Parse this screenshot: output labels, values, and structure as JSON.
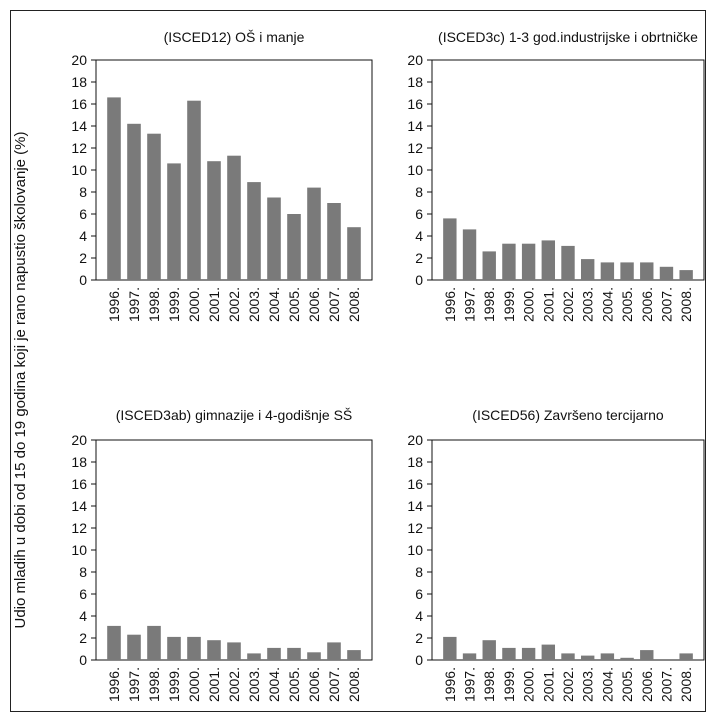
{
  "figure": {
    "ylabel": "Udio mladih u dobi od 15 do 19 godina koji je rano napustio školovanje (%)"
  },
  "style": {
    "bar_color": "#7a7a7a",
    "axis_color": "#111111"
  },
  "chart_data": [
    {
      "type": "bar",
      "title": "(ISCED12) OŠ i manje",
      "categories": [
        "1996.",
        "1997.",
        "1998.",
        "1999.",
        "2000.",
        "2001.",
        "2002.",
        "2003.",
        "2004.",
        "2005.",
        "2006.",
        "2007.",
        "2008."
      ],
      "values": [
        16.6,
        14.2,
        13.3,
        10.6,
        16.3,
        10.8,
        11.3,
        8.9,
        7.5,
        6.0,
        8.4,
        7.0,
        4.8
      ],
      "ylim": [
        0,
        20
      ],
      "yticks": [
        0,
        2,
        4,
        6,
        8,
        10,
        12,
        14,
        16,
        18,
        20
      ]
    },
    {
      "type": "bar",
      "title": "(ISCED3c) 1-3 god.industrijske i obrtničke",
      "categories": [
        "1996.",
        "1997.",
        "1998.",
        "1999.",
        "2000.",
        "2001.",
        "2002.",
        "2003.",
        "2004.",
        "2005.",
        "2006.",
        "2007.",
        "2008."
      ],
      "values": [
        5.6,
        4.6,
        2.6,
        3.3,
        3.3,
        3.6,
        3.1,
        1.9,
        1.6,
        1.6,
        1.6,
        1.2,
        0.9
      ],
      "ylim": [
        0,
        20
      ],
      "yticks": [
        0,
        2,
        4,
        6,
        8,
        10,
        12,
        14,
        16,
        18,
        20
      ]
    },
    {
      "type": "bar",
      "title": "(ISCED3ab) gimnazije i 4-godišnje SŠ",
      "categories": [
        "1996.",
        "1997.",
        "1998.",
        "1999.",
        "2000.",
        "2001.",
        "2002.",
        "2003.",
        "2004.",
        "2005.",
        "2006.",
        "2007.",
        "2008."
      ],
      "values": [
        3.1,
        2.3,
        3.1,
        2.1,
        2.1,
        1.8,
        1.6,
        0.6,
        1.1,
        1.1,
        0.7,
        1.6,
        0.9
      ],
      "ylim": [
        0,
        20
      ],
      "yticks": [
        0,
        2,
        4,
        6,
        8,
        10,
        12,
        14,
        16,
        18,
        20
      ]
    },
    {
      "type": "bar",
      "title": "(ISCED56) Završeno tercijarno",
      "categories": [
        "1996.",
        "1997.",
        "1998.",
        "1999.",
        "2000.",
        "2001.",
        "2002.",
        "2003.",
        "2004.",
        "2005.",
        "2006.",
        "2007.",
        "2008."
      ],
      "values": [
        2.1,
        0.6,
        1.8,
        1.1,
        1.1,
        1.4,
        0.6,
        0.4,
        0.6,
        0.2,
        0.9,
        0.0,
        0.6
      ],
      "ylim": [
        0,
        20
      ],
      "yticks": [
        0,
        2,
        4,
        6,
        8,
        10,
        12,
        14,
        16,
        18,
        20
      ]
    }
  ]
}
